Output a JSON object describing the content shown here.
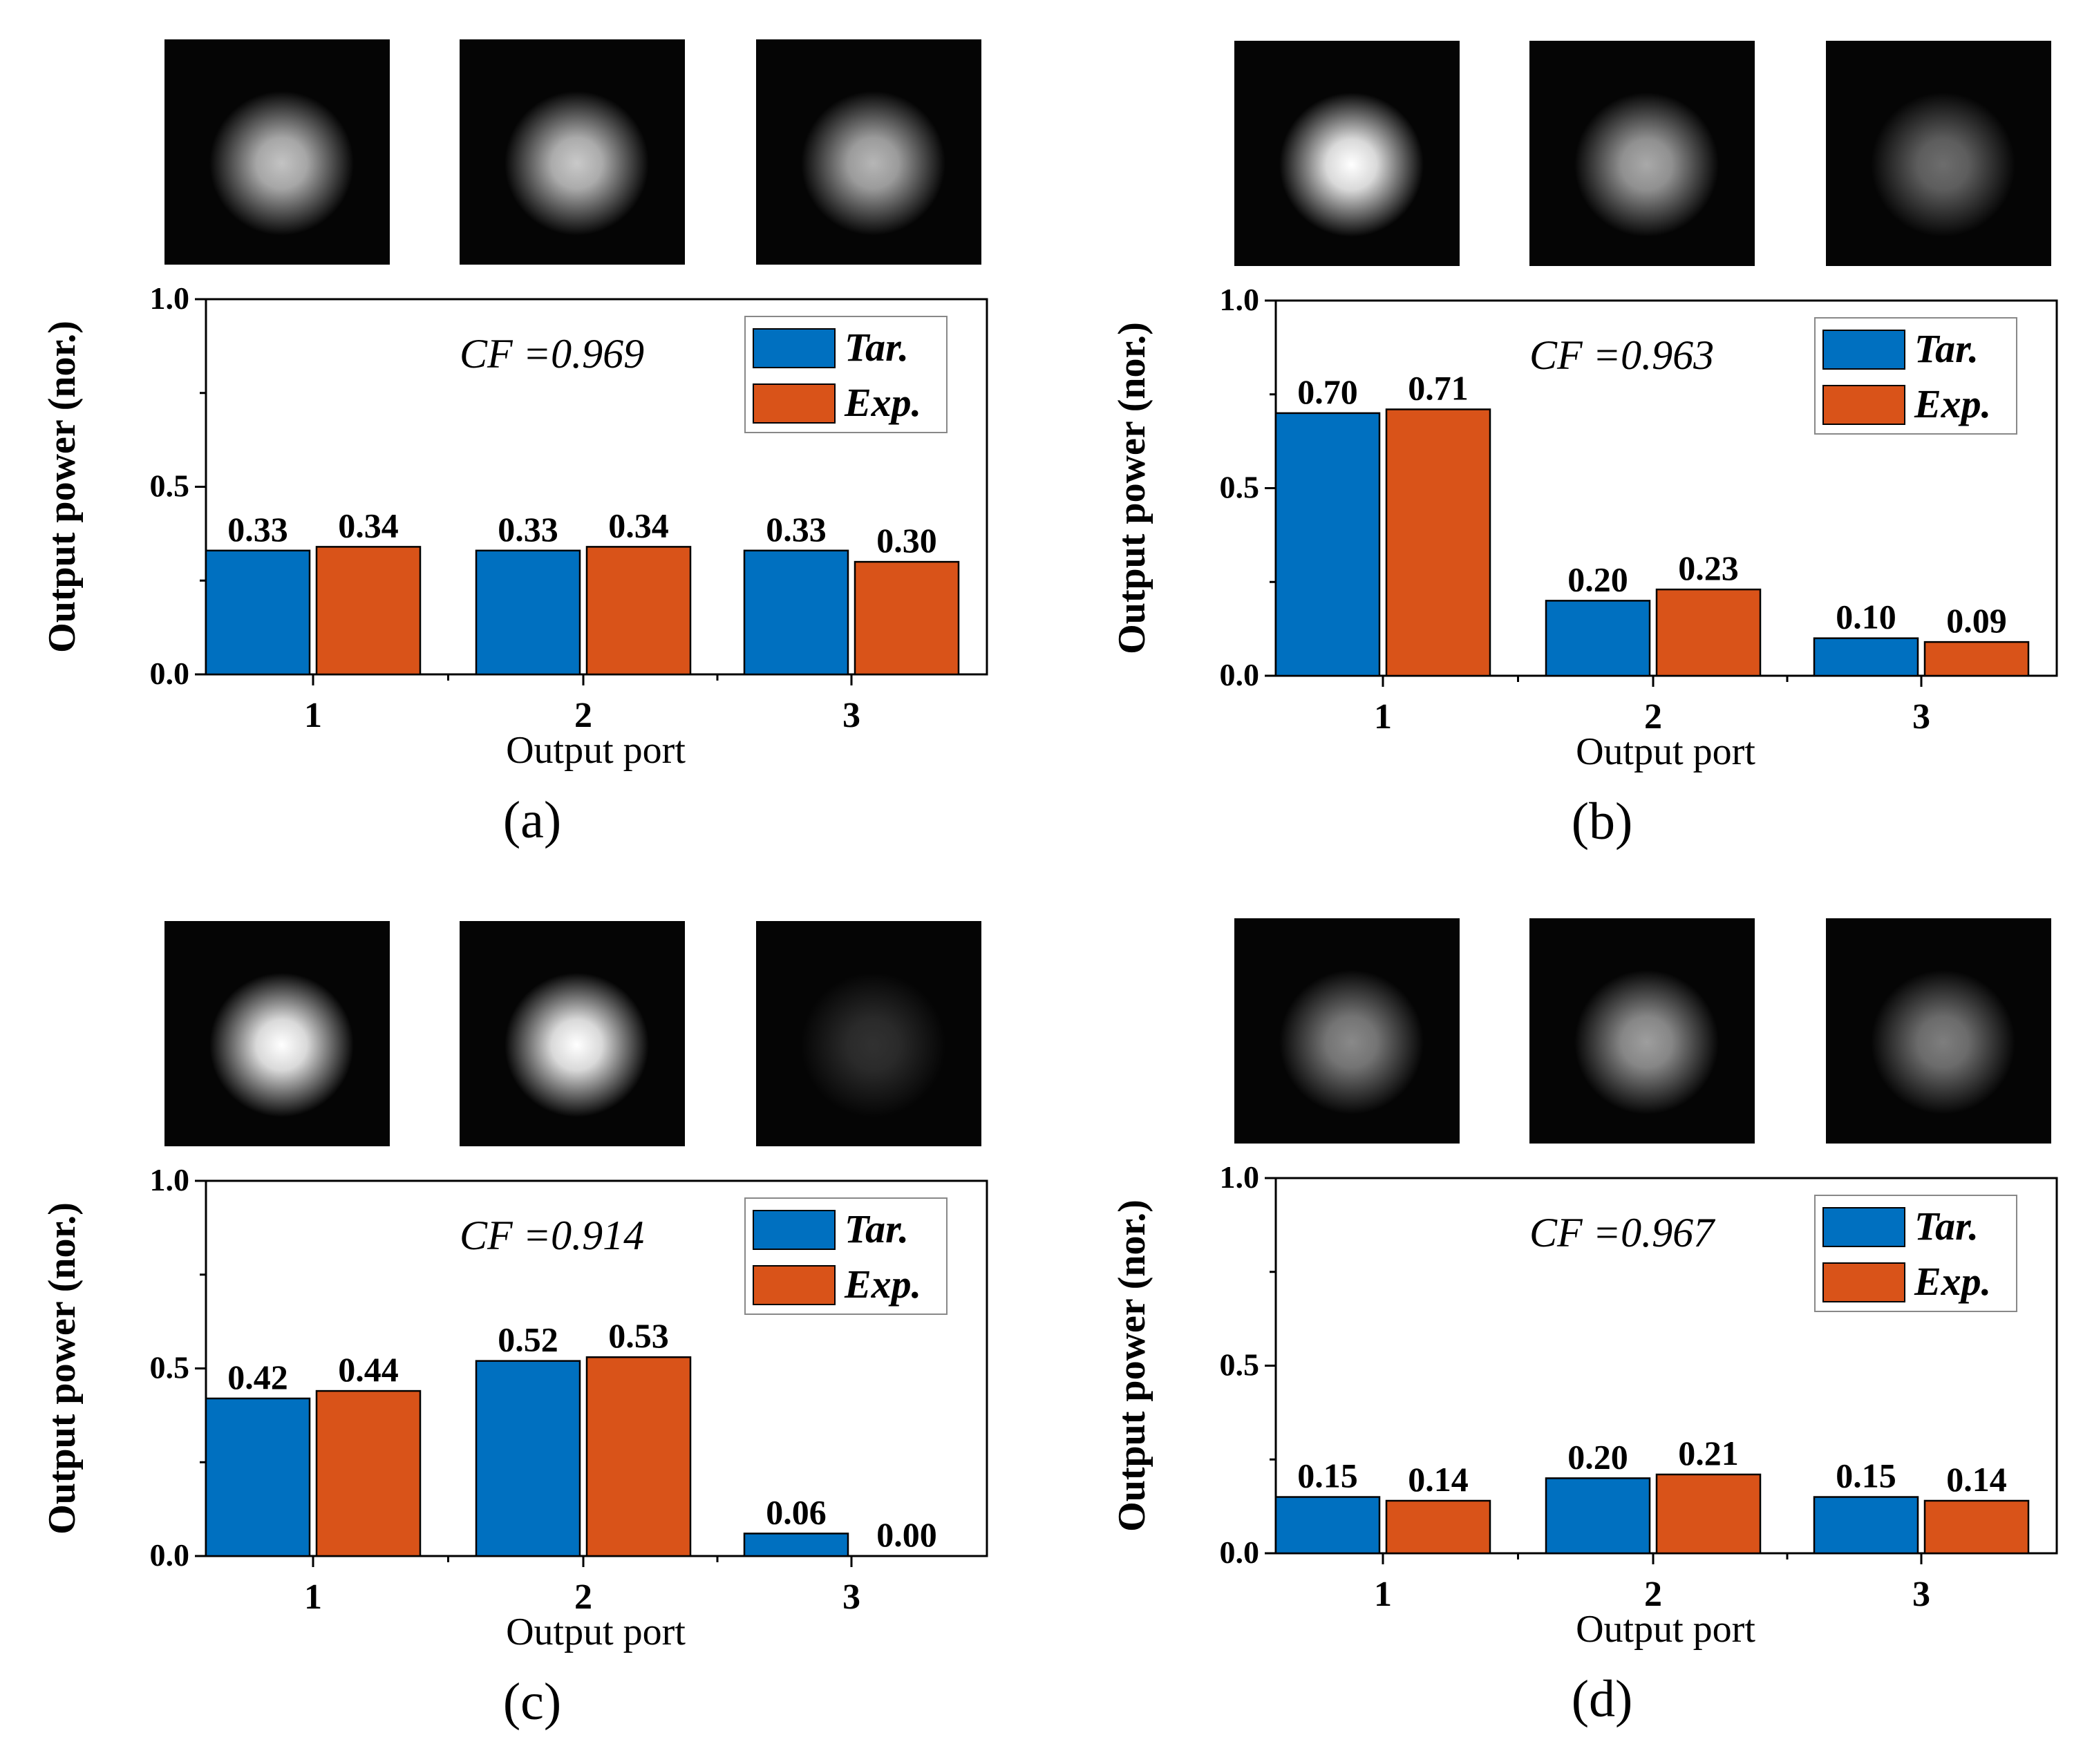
{
  "figure": {
    "legend": {
      "target_label": "Tar.",
      "experiment_label": "Exp."
    },
    "colors": {
      "target": "#0070C0",
      "experiment": "#D95319",
      "axis": "#000000",
      "background": "#ffffff"
    }
  },
  "chart_data": [
    {
      "panel": "(a)",
      "type": "bar",
      "annotation": "CF =0.969",
      "categories": [
        "1",
        "2",
        "3"
      ],
      "series": [
        {
          "name": "Tar.",
          "values": [
            0.33,
            0.33,
            0.33
          ],
          "labels": [
            "0.33",
            "0.33",
            "0.33"
          ]
        },
        {
          "name": "Exp.",
          "values": [
            0.34,
            0.34,
            0.3
          ],
          "labels": [
            "0.34",
            "0.34",
            "0.30"
          ]
        }
      ],
      "spot_intensity": [
        0.72,
        0.75,
        0.66
      ],
      "xlabel": "Output port",
      "ylabel": "Output power (nor.)",
      "ylim": [
        0,
        1
      ],
      "yticks": [
        "0.0",
        "0.5",
        "1.0"
      ],
      "legend_position": "top-right"
    },
    {
      "panel": "(b)",
      "type": "bar",
      "annotation": "CF =0.963",
      "categories": [
        "1",
        "2",
        "3"
      ],
      "series": [
        {
          "name": "Tar.",
          "values": [
            0.7,
            0.2,
            0.1
          ],
          "labels": [
            "0.70",
            "0.20",
            "0.10"
          ]
        },
        {
          "name": "Exp.",
          "values": [
            0.71,
            0.23,
            0.09
          ],
          "labels": [
            "0.71",
            "0.23",
            "0.09"
          ]
        }
      ],
      "spot_intensity": [
        1.0,
        0.6,
        0.32
      ],
      "xlabel": "Output port",
      "ylabel": "Output power (nor.)",
      "ylim": [
        0,
        1
      ],
      "yticks": [
        "0.0",
        "0.5",
        "1.0"
      ],
      "legend_position": "top-right"
    },
    {
      "panel": "(c)",
      "type": "bar",
      "annotation": "CF =0.914",
      "categories": [
        "1",
        "2",
        "3"
      ],
      "series": [
        {
          "name": "Tar.",
          "values": [
            0.42,
            0.52,
            0.06
          ],
          "labels": [
            "0.42",
            "0.52",
            "0.06"
          ]
        },
        {
          "name": "Exp.",
          "values": [
            0.44,
            0.53,
            0.0
          ],
          "labels": [
            "0.44",
            "0.53",
            "0.00"
          ]
        }
      ],
      "spot_intensity": [
        1.0,
        1.0,
        0.04
      ],
      "xlabel": "Output port",
      "ylabel": "Output power (nor.)",
      "ylim": [
        0,
        1
      ],
      "yticks": [
        "0.0",
        "0.5",
        "1.0"
      ],
      "legend_position": "top-right"
    },
    {
      "panel": "(d)",
      "type": "bar",
      "annotation": "CF =0.967",
      "categories": [
        "1",
        "2",
        "3"
      ],
      "series": [
        {
          "name": "Tar.",
          "values": [
            0.15,
            0.2,
            0.15
          ],
          "labels": [
            "0.15",
            "0.20",
            "0.15"
          ]
        },
        {
          "name": "Exp.",
          "values": [
            0.14,
            0.21,
            0.14
          ],
          "labels": [
            "0.14",
            "0.21",
            "0.14"
          ]
        }
      ],
      "spot_intensity": [
        0.45,
        0.55,
        0.4
      ],
      "xlabel": "Output port",
      "ylabel": "Output power (nor.)",
      "ylim": [
        0,
        1
      ],
      "yticks": [
        "0.0",
        "0.5",
        "1.0"
      ],
      "legend_position": "top-right"
    }
  ]
}
